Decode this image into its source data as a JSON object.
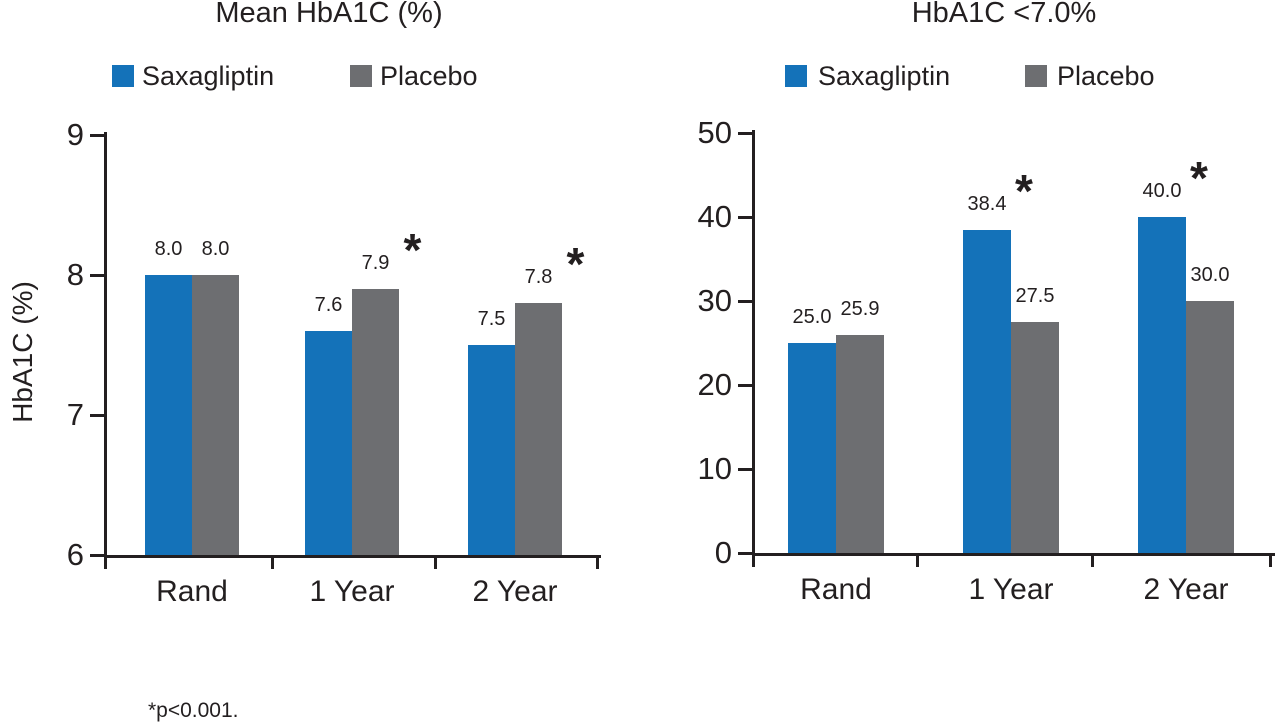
{
  "figure": {
    "footnote": "*p<0.001.",
    "background": "#ffffff"
  },
  "colors": {
    "saxagliptin": "#1472b9",
    "placebo": "#6d6e71",
    "axis": "#231f20",
    "text": "#231f20"
  },
  "chart_data": [
    {
      "type": "bar",
      "title": "Mean HbA1C (%)",
      "ylabel": "HbA1C (%)",
      "xlabel": "",
      "categories": [
        "Rand",
        "1 Year",
        "2 Year"
      ],
      "series": [
        {
          "name": "Saxagliptin",
          "color_key": "saxagliptin",
          "values": [
            8.0,
            7.6,
            7.5
          ],
          "value_labels": [
            "8.0",
            "7.6",
            "7.5"
          ],
          "significant": [
            false,
            false,
            false
          ]
        },
        {
          "name": "Placebo",
          "color_key": "placebo",
          "values": [
            8.0,
            7.9,
            7.8
          ],
          "value_labels": [
            "8.0",
            "7.9",
            "7.8"
          ],
          "significant": [
            false,
            true,
            true
          ]
        }
      ],
      "ylim": [
        6,
        9
      ],
      "yticks": [
        9,
        8,
        7,
        6
      ],
      "grid": false,
      "legend_position": "top",
      "significance_marker": "*"
    },
    {
      "type": "bar",
      "title": "HbA1C <7.0%",
      "ylabel": "",
      "xlabel": "",
      "categories": [
        "Rand",
        "1 Year",
        "2 Year"
      ],
      "series": [
        {
          "name": "Saxagliptin",
          "color_key": "saxagliptin",
          "values": [
            25.0,
            38.4,
            40.0
          ],
          "value_labels": [
            "25.0",
            "38.4",
            "40.0"
          ],
          "significant": [
            false,
            true,
            true
          ]
        },
        {
          "name": "Placebo",
          "color_key": "placebo",
          "values": [
            25.9,
            27.5,
            30.0
          ],
          "value_labels": [
            "25.9",
            "27.5",
            "30.0"
          ],
          "significant": [
            false,
            false,
            false
          ]
        }
      ],
      "ylim": [
        0,
        50
      ],
      "yticks": [
        50,
        40,
        30,
        20,
        10,
        0
      ],
      "grid": false,
      "legend_position": "top",
      "significance_marker": "*"
    }
  ]
}
